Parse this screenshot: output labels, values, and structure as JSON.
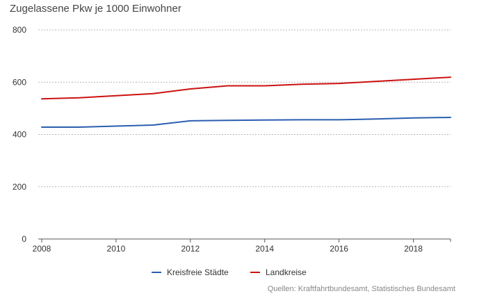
{
  "chart_data": {
    "type": "line",
    "title": "Zugelassene Pkw je 1000 Einwohner",
    "xlabel": "",
    "ylabel": "",
    "x": [
      2008,
      2009,
      2010,
      2011,
      2012,
      2013,
      2014,
      2015,
      2016,
      2017,
      2018,
      2019
    ],
    "xlim": [
      2008,
      2019
    ],
    "ylim": [
      0,
      800
    ],
    "x_ticks": [
      2008,
      2010,
      2012,
      2014,
      2016,
      2018
    ],
    "y_ticks": [
      0,
      200,
      400,
      600,
      800
    ],
    "grid": "horizontal dotted",
    "legend_position": "bottom-center",
    "series": [
      {
        "name": "Kreisfreie Städte",
        "color": "#2a5db0",
        "values": [
          428,
          428,
          432,
          436,
          452,
          454,
          455,
          456,
          456,
          459,
          463,
          465
        ]
      },
      {
        "name": "Landkreise",
        "color": "#cc1111",
        "values": [
          536,
          540,
          548,
          556,
          574,
          586,
          586,
          592,
          595,
          603,
          611,
          619
        ]
      }
    ],
    "source": "Quellen: Kraftfahrtbundesamt, Statistisches Bundesamt"
  }
}
